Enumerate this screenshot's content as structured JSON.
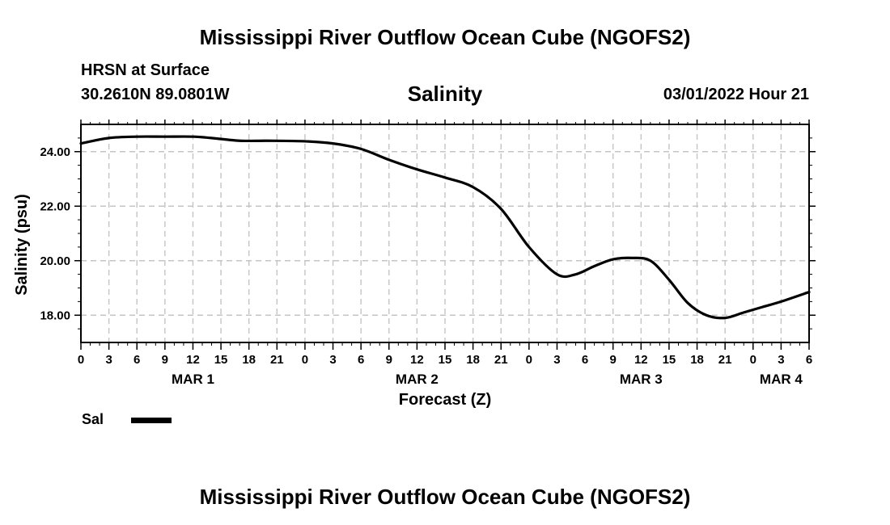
{
  "header": {
    "title": "Mississippi River Outflow Ocean Cube (NGOFS2)",
    "station": "HRSN at Surface",
    "coords": "30.2610N  89.0801W",
    "variable": "Salinity",
    "timestamp": "03/01/2022 Hour 21"
  },
  "footer": {
    "title": "Mississippi River Outflow Ocean Cube (NGOFS2)"
  },
  "legend": {
    "label": "Sal"
  },
  "chart_data": {
    "type": "line",
    "title": "Salinity",
    "xlabel": "Forecast (Z)",
    "ylabel": "Salinity (psu)",
    "xlim": [
      0,
      78
    ],
    "ylim": [
      17,
      25
    ],
    "y_ticks": [
      18.0,
      20.0,
      22.0,
      24.0
    ],
    "y_tick_labels": [
      "18.00",
      "20.00",
      "22.00",
      "24.00"
    ],
    "x_major_ticks": [
      0,
      3,
      6,
      9,
      12,
      15,
      18,
      21,
      24,
      27,
      30,
      33,
      36,
      39,
      42,
      45,
      48,
      51,
      54,
      57,
      60,
      63,
      66,
      69,
      72,
      75,
      78
    ],
    "x_tick_labels": [
      "0",
      "3",
      "6",
      "9",
      "12",
      "15",
      "18",
      "21",
      "0",
      "3",
      "6",
      "9",
      "12",
      "15",
      "18",
      "21",
      "0",
      "3",
      "6",
      "9",
      "12",
      "15",
      "18",
      "21",
      "0",
      "3",
      "6"
    ],
    "date_labels": [
      {
        "x": 12,
        "label": "MAR 1"
      },
      {
        "x": 36,
        "label": "MAR 2"
      },
      {
        "x": 60,
        "label": "MAR 3"
      },
      {
        "x": 75,
        "label": "MAR 4"
      }
    ],
    "grid": true,
    "legend_position": "bottom-left",
    "series": [
      {
        "name": "Sal",
        "color": "#000000",
        "x": [
          0,
          3,
          6,
          9,
          12,
          14,
          17,
          20,
          24,
          27,
          30,
          33,
          36,
          39,
          42,
          45,
          48,
          51,
          53,
          55,
          57,
          59,
          61,
          63,
          65,
          67,
          69,
          71,
          73,
          75,
          78
        ],
        "y": [
          24.3,
          24.5,
          24.55,
          24.55,
          24.55,
          24.5,
          24.4,
          24.4,
          24.38,
          24.3,
          24.1,
          23.7,
          23.35,
          23.05,
          22.7,
          21.9,
          20.5,
          19.5,
          19.5,
          19.8,
          20.05,
          20.1,
          20.0,
          19.3,
          18.45,
          18.0,
          17.9,
          18.1,
          18.3,
          18.5,
          18.85
        ]
      }
    ]
  }
}
